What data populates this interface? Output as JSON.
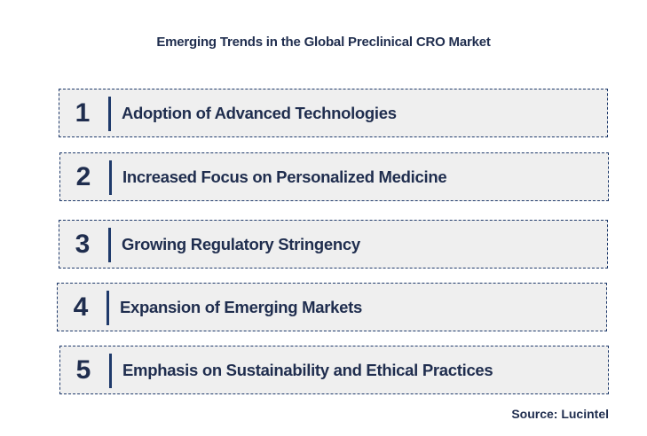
{
  "title": "Emerging Trends in the Global Preclinical CRO Market",
  "trends": [
    {
      "number": "1",
      "label": "Adoption of Advanced Technologies"
    },
    {
      "number": "2",
      "label": "Increased Focus on Personalized Medicine"
    },
    {
      "number": "3",
      "label": "Growing Regulatory Stringency"
    },
    {
      "number": "4",
      "label": "Expansion of Emerging Markets"
    },
    {
      "number": "5",
      "label": "Emphasis on Sustainability and Ethical Practices"
    }
  ],
  "source": "Source: Lucintel",
  "colors": {
    "text": "#1f2d4e",
    "box_background": "#efefef",
    "accent": "#1f3a6b"
  }
}
